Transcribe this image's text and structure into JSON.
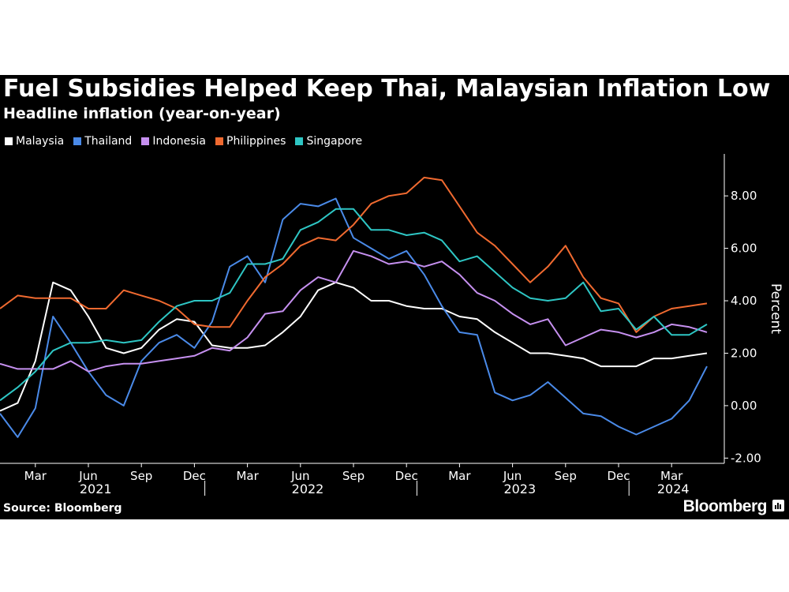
{
  "title": "Fuel Subsidies Helped Keep Thai, Malaysian Inflation Low",
  "subtitle": "Headline inflation (year-on-year)",
  "source": "Source: Bloomberg",
  "brand": "Bloomberg",
  "chart_data": {
    "type": "line",
    "ylabel": "Percent",
    "ylim": [
      -2.2,
      9.6
    ],
    "yticks": [
      -2,
      0,
      2,
      4,
      6,
      8
    ],
    "ytick_labels": [
      "-2.00",
      "0.00",
      "2.00",
      "4.00",
      "6.00",
      "8.00"
    ],
    "month_ticks": [
      "Mar",
      "Jun",
      "Sep",
      "Dec",
      "Mar",
      "Jun",
      "Sep",
      "Dec",
      "Mar",
      "Jun",
      "Sep",
      "Dec",
      "Mar"
    ],
    "year_labels": [
      "2021",
      "2022",
      "2023",
      "2024"
    ],
    "x_start": "2021-01",
    "x": [
      "2021-01",
      "2021-02",
      "2021-03",
      "2021-04",
      "2021-05",
      "2021-06",
      "2021-07",
      "2021-08",
      "2021-09",
      "2021-10",
      "2021-11",
      "2021-12",
      "2022-01",
      "2022-02",
      "2022-03",
      "2022-04",
      "2022-05",
      "2022-06",
      "2022-07",
      "2022-08",
      "2022-09",
      "2022-10",
      "2022-11",
      "2022-12",
      "2023-01",
      "2023-02",
      "2023-03",
      "2023-04",
      "2023-05",
      "2023-06",
      "2023-07",
      "2023-08",
      "2023-09",
      "2023-10",
      "2023-11",
      "2023-12",
      "2024-01",
      "2024-02",
      "2024-03",
      "2024-04",
      "2024-05"
    ],
    "legend_position": "top-left",
    "grid": false,
    "series": [
      {
        "name": "Malaysia",
        "color": "#ffffff",
        "values": [
          -0.2,
          0.1,
          1.7,
          4.7,
          4.4,
          3.4,
          2.2,
          2.0,
          2.2,
          2.9,
          3.3,
          3.2,
          2.3,
          2.2,
          2.2,
          2.3,
          2.8,
          3.4,
          4.4,
          4.7,
          4.5,
          4.0,
          4.0,
          3.8,
          3.7,
          3.7,
          3.4,
          3.3,
          2.8,
          2.4,
          2.0,
          2.0,
          1.9,
          1.8,
          1.5,
          1.5,
          1.5,
          1.8,
          1.8,
          1.9,
          2.0
        ]
      },
      {
        "name": "Thailand",
        "color": "#4a8ae8",
        "values": [
          -0.3,
          -1.2,
          -0.1,
          3.4,
          2.4,
          1.3,
          0.4,
          0.0,
          1.7,
          2.4,
          2.7,
          2.2,
          3.2,
          5.3,
          5.7,
          4.7,
          7.1,
          7.7,
          7.6,
          7.9,
          6.4,
          6.0,
          5.6,
          5.9,
          5.0,
          3.8,
          2.8,
          2.7,
          0.5,
          0.2,
          0.4,
          0.9,
          0.3,
          -0.3,
          -0.4,
          -0.8,
          -1.1,
          -0.8,
          -0.5,
          0.2,
          1.5
        ]
      },
      {
        "name": "Indonesia",
        "color": "#c690f0",
        "values": [
          1.6,
          1.4,
          1.4,
          1.4,
          1.7,
          1.3,
          1.5,
          1.6,
          1.6,
          1.7,
          1.8,
          1.9,
          2.2,
          2.1,
          2.6,
          3.5,
          3.6,
          4.4,
          4.9,
          4.7,
          5.9,
          5.7,
          5.4,
          5.5,
          5.3,
          5.5,
          5.0,
          4.3,
          4.0,
          3.5,
          3.1,
          3.3,
          2.3,
          2.6,
          2.9,
          2.8,
          2.6,
          2.8,
          3.1,
          3.0,
          2.8
        ]
      },
      {
        "name": "Philippines",
        "color": "#f06a30",
        "values": [
          3.7,
          4.2,
          4.1,
          4.1,
          4.1,
          3.7,
          3.7,
          4.4,
          4.2,
          4.0,
          3.7,
          3.1,
          3.0,
          3.0,
          4.0,
          4.9,
          5.4,
          6.1,
          6.4,
          6.3,
          6.9,
          7.7,
          8.0,
          8.1,
          8.7,
          8.6,
          7.6,
          6.6,
          6.1,
          5.4,
          4.7,
          5.3,
          6.1,
          4.9,
          4.1,
          3.9,
          2.8,
          3.4,
          3.7,
          3.8,
          3.9
        ]
      },
      {
        "name": "Singapore",
        "color": "#2ec6c4",
        "values": [
          0.2,
          0.7,
          1.3,
          2.1,
          2.4,
          2.4,
          2.5,
          2.4,
          2.5,
          3.2,
          3.8,
          4.0,
          4.0,
          4.3,
          5.4,
          5.4,
          5.6,
          6.7,
          7.0,
          7.5,
          7.5,
          6.7,
          6.7,
          6.5,
          6.6,
          6.3,
          5.5,
          5.7,
          5.1,
          4.5,
          4.1,
          4.0,
          4.1,
          4.7,
          3.6,
          3.7,
          2.9,
          3.4,
          2.7,
          2.7,
          3.1
        ]
      }
    ]
  }
}
